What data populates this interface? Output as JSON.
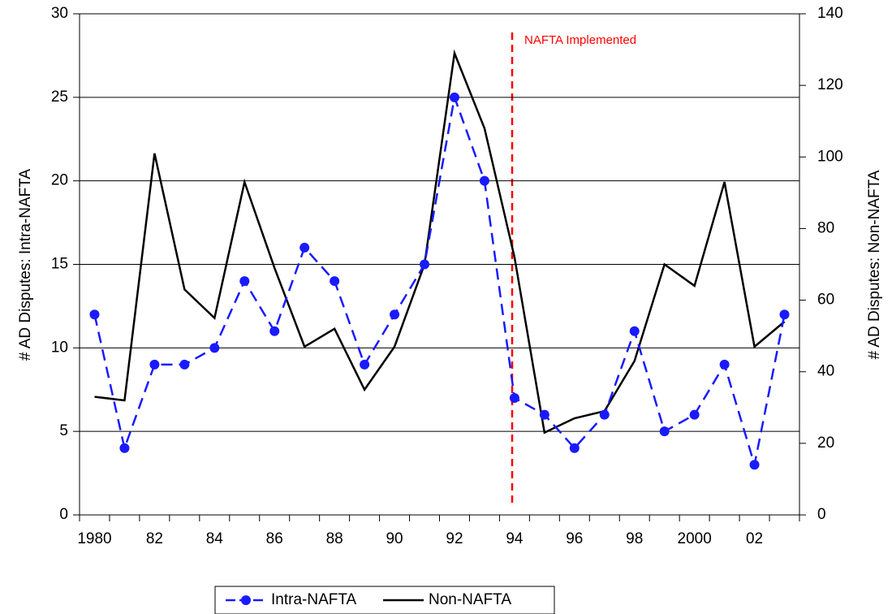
{
  "chart_data": {
    "type": "line",
    "y_label": "# AD Disputes: Intra-NAFTA",
    "y2_label": "# AD Disputes: Non-NAFTA",
    "annotation": "NAFTA Implemented",
    "categories": [
      "1980",
      null,
      "82",
      null,
      "84",
      null,
      "86",
      null,
      "88",
      null,
      "90",
      null,
      "92",
      null,
      "94",
      null,
      "96",
      null,
      "98",
      null,
      "2000",
      null,
      "02",
      null
    ],
    "series": [
      {
        "name": "Intra-NAFTA",
        "color": "#1a1aff",
        "line_style": "dashed",
        "marker": "circle",
        "axis": "y",
        "values": [
          12,
          4,
          9,
          9,
          10,
          14,
          11,
          16,
          14,
          9,
          12,
          15,
          25,
          20,
          7,
          6,
          4,
          6,
          11,
          5,
          6,
          9,
          3,
          12
        ]
      },
      {
        "name": "Non-NAFTA",
        "color": "#000000",
        "line_style": "solid",
        "axis": "y2",
        "values": [
          33,
          32,
          101,
          63,
          55,
          93,
          69,
          47,
          52,
          35,
          47,
          70,
          129,
          108,
          72,
          23,
          27,
          29,
          43,
          70,
          64,
          93,
          47,
          54
        ]
      }
    ],
    "ylim": [
      0,
      30
    ],
    "yticks": [
      0,
      5,
      10,
      15,
      20,
      25,
      30
    ],
    "y2lim": [
      0,
      140
    ],
    "y2ticks": [
      0,
      20,
      40,
      60,
      80,
      100,
      120,
      140
    ],
    "grid": true
  }
}
